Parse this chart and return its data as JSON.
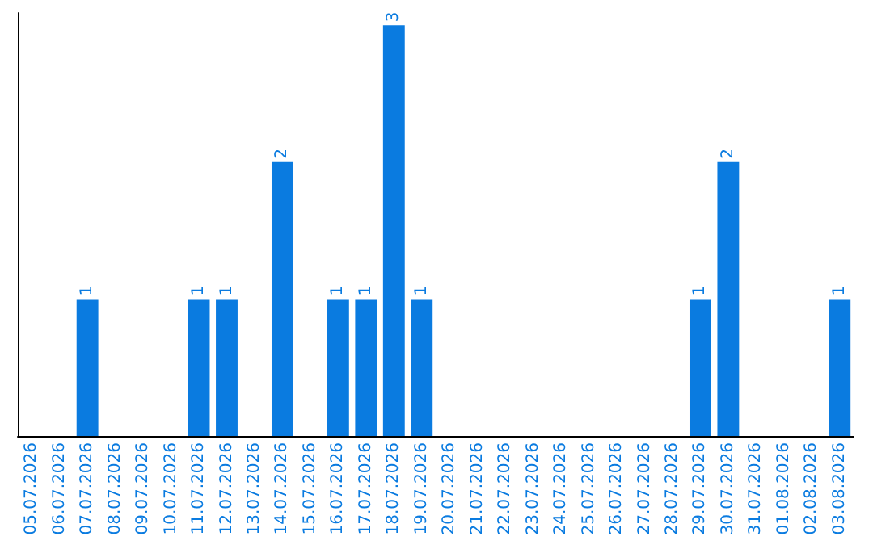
{
  "chart_data": {
    "type": "bar",
    "categories": [
      "05.07.2026",
      "06.07.2026",
      "07.07.2026",
      "08.07.2026",
      "09.07.2026",
      "10.07.2026",
      "11.07.2026",
      "12.07.2026",
      "13.07.2026",
      "14.07.2026",
      "15.07.2026",
      "16.07.2026",
      "17.07.2026",
      "18.07.2026",
      "19.07.2026",
      "20.07.2026",
      "21.07.2026",
      "22.07.2026",
      "23.07.2026",
      "24.07.2026",
      "25.07.2026",
      "26.07.2026",
      "27.07.2026",
      "28.07.2026",
      "29.07.2026",
      "30.07.2026",
      "31.07.2026",
      "01.08.2026",
      "02.08.2026",
      "03.08.2026"
    ],
    "values": [
      0,
      0,
      1,
      0,
      0,
      0,
      1,
      1,
      0,
      2,
      0,
      1,
      1,
      3,
      1,
      0,
      0,
      0,
      0,
      0,
      0,
      0,
      0,
      0,
      1,
      2,
      0,
      0,
      0,
      1
    ],
    "value_labels": [
      null,
      null,
      "1",
      null,
      null,
      null,
      "1",
      "1",
      null,
      "2",
      null,
      "1",
      "1",
      "3",
      "1",
      null,
      null,
      null,
      null,
      null,
      null,
      null,
      null,
      null,
      "1",
      "2",
      null,
      null,
      null,
      "1"
    ],
    "color": "#0a7be0",
    "grid": false,
    "tick_labels": "x"
  }
}
